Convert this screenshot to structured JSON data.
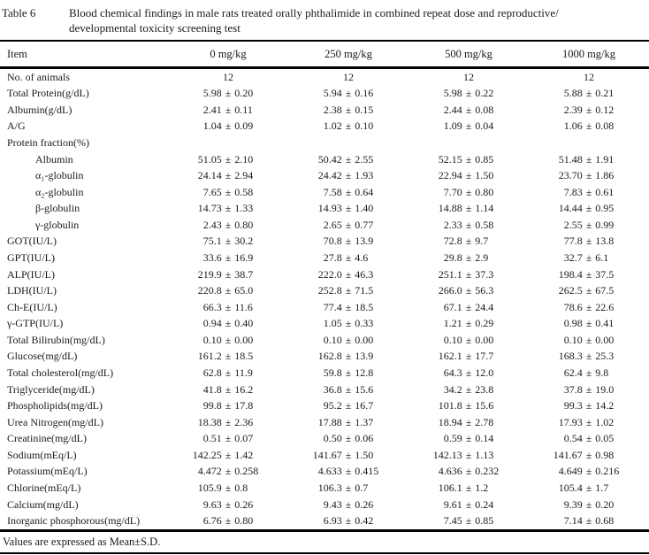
{
  "document": {
    "table_label": "Table 6",
    "caption_lines": [
      "Blood chemical findings in male rats treated orally phthalimide in combined repeat dose and reproductive/",
      "developmental toxicity screening test"
    ],
    "footnote": "Values are expressed as Mean±S.D."
  },
  "table": {
    "columns": [
      "Item",
      "0 mg/kg",
      "250 mg/kg",
      "500 mg/kg",
      "1000 mg/kg"
    ],
    "rows": [
      {
        "item": "No. of animals",
        "indent": false,
        "values": [
          "12",
          "12",
          "12",
          "12"
        ]
      },
      {
        "item": "Total Protein(g/dL)",
        "indent": false,
        "values": [
          "5.98 ± 0.20",
          "5.94 ± 0.16",
          "5.98 ± 0.22",
          "5.88 ± 0.21"
        ]
      },
      {
        "item": "Albumin(g/dL)",
        "indent": false,
        "values": [
          "2.41 ± 0.11",
          "2.38 ± 0.15",
          "2.44 ± 0.08",
          "2.39 ± 0.12"
        ]
      },
      {
        "item": "A/G",
        "indent": false,
        "values": [
          "1.04 ± 0.09",
          "1.02 ± 0.10",
          "1.09 ± 0.04",
          "1.06 ± 0.08"
        ]
      },
      {
        "item": "Protein fraction(%)",
        "indent": false,
        "values": [
          "",
          "",
          "",
          ""
        ]
      },
      {
        "item": "Albumin",
        "indent": true,
        "values": [
          "51.05 ± 2.10",
          "50.42 ± 2.55",
          "52.15 ± 0.85",
          "51.48 ± 1.91"
        ]
      },
      {
        "item": "α₁-globulin",
        "indent": true,
        "values": [
          "24.14 ± 2.94",
          "24.42 ± 1.93",
          "22.94 ± 1.50",
          "23.70 ± 1.86"
        ]
      },
      {
        "item": "α₂-globulin",
        "indent": true,
        "values": [
          "7.65 ± 0.58",
          "7.58 ± 0.64",
          "7.70 ± 0.80",
          "7.83 ± 0.61"
        ]
      },
      {
        "item": "β-globulin",
        "indent": true,
        "values": [
          "14.73 ± 1.33",
          "14.93 ± 1.40",
          "14.88 ± 1.14",
          "14.44 ± 0.95"
        ]
      },
      {
        "item": "γ-globulin",
        "indent": true,
        "values": [
          "2.43 ± 0.80",
          "2.65 ± 0.77",
          "2.33 ± 0.58",
          "2.55 ± 0.99"
        ]
      },
      {
        "item": "GOT(IU/L)",
        "indent": false,
        "values": [
          "75.1 ± 30.2",
          "70.8 ± 13.9",
          "72.8 ± 9.7",
          "77.8 ± 13.8"
        ]
      },
      {
        "item": "GPT(IU/L)",
        "indent": false,
        "values": [
          "33.6 ± 16.9",
          "27.8 ± 4.6",
          "29.8 ± 2.9",
          "32.7 ± 6.1"
        ]
      },
      {
        "item": "ALP(IU/L)",
        "indent": false,
        "values": [
          "219.9 ± 38.7",
          "222.0 ± 46.3",
          "251.1 ± 37.3",
          "198.4 ± 37.5"
        ]
      },
      {
        "item": "LDH(IU/L)",
        "indent": false,
        "values": [
          "220.8 ± 65.0",
          "252.8 ± 71.5",
          "266.0 ± 56.3",
          "262.5 ± 67.5"
        ]
      },
      {
        "item": "Ch-E(IU/L)",
        "indent": false,
        "values": [
          "66.3 ± 11.6",
          "77.4 ± 18.5",
          "67.1 ± 24.4",
          "78.6 ± 22.6"
        ]
      },
      {
        "item": "γ-GTP(IU/L)",
        "indent": false,
        "values": [
          "0.94 ± 0.40",
          "1.05 ± 0.33",
          "1.21 ± 0.29",
          "0.98 ± 0.41"
        ]
      },
      {
        "item": "Total Bilirubin(mg/dL)",
        "indent": false,
        "values": [
          "0.10 ± 0.00",
          "0.10 ± 0.00",
          "0.10 ± 0.00",
          "0.10 ± 0.00"
        ]
      },
      {
        "item": "Glucose(mg/dL)",
        "indent": false,
        "values": [
          "161.2 ± 18.5",
          "162.8 ± 13.9",
          "162.1 ± 17.7",
          "168.3 ± 25.3"
        ]
      },
      {
        "item": "Total cholesterol(mg/dL)",
        "indent": false,
        "values": [
          "62.8 ± 11.9",
          "59.8 ± 12.8",
          "64.3 ± 12.0",
          "62.4 ± 9.8"
        ]
      },
      {
        "item": "Triglyceride(mg/dL)",
        "indent": false,
        "values": [
          "41.8 ± 16.2",
          "36.8 ± 15.6",
          "34.2 ± 23.8",
          "37.8 ± 19.0"
        ]
      },
      {
        "item": "Phospholipids(mg/dL)",
        "indent": false,
        "values": [
          "99.8 ± 17.8",
          "95.2 ± 16.7",
          "101.8 ± 15.6",
          "99.3 ± 14.2"
        ]
      },
      {
        "item": "Urea Nitrogen(mg/dL)",
        "indent": false,
        "values": [
          "18.38 ± 2.36",
          "17.88 ± 1.37",
          "18.94 ± 2.78",
          "17.93 ± 1.02"
        ]
      },
      {
        "item": "Creatinine(mg/dL)",
        "indent": false,
        "values": [
          "0.51 ± 0.07",
          "0.50 ± 0.06",
          "0.59 ± 0.14",
          "0.54 ± 0.05"
        ]
      },
      {
        "item": "Sodium(mEq/L)",
        "indent": false,
        "values": [
          "142.25 ± 1.42",
          "141.67 ± 1.50",
          "142.13 ± 1.13",
          "141.67 ± 0.98"
        ]
      },
      {
        "item": "Potassium(mEq/L)",
        "indent": false,
        "values": [
          "4.472 ± 0.258",
          "4.633 ± 0.415",
          "4.636 ± 0.232",
          "4.649 ± 0.216"
        ]
      },
      {
        "item": "Chlorine(mEq/L)",
        "indent": false,
        "values": [
          "105.9 ± 0.8",
          "106.3 ± 0.7",
          "106.1 ± 1.2",
          "105.4 ± 1.7"
        ]
      },
      {
        "item": "Calcium(mg/dL)",
        "indent": false,
        "values": [
          "9.63 ± 0.26",
          "9.43 ± 0.26",
          "9.61 ± 0.24",
          "9.39 ± 0.20"
        ]
      },
      {
        "item": "Inorganic phosphorous(mg/dL)",
        "indent": false,
        "values": [
          "6.76 ± 0.80",
          "6.93 ± 0.42",
          "7.45 ± 0.85",
          "7.14 ± 0.68"
        ]
      }
    ]
  }
}
